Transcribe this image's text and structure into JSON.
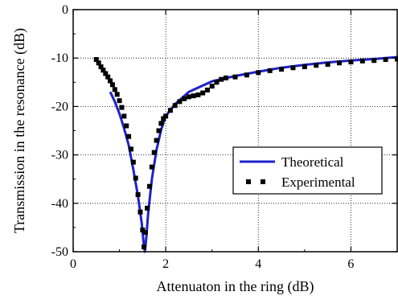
{
  "chart_data": {
    "type": "line",
    "title": "",
    "xlabel": "Attenuaton in the ring (dB)",
    "ylabel": "Transmission in the resonance (dB)",
    "xlim": [
      0,
      7
    ],
    "ylim": [
      -50,
      0
    ],
    "xticks": [
      0,
      2,
      4,
      6
    ],
    "yticks": [
      0,
      -10,
      -20,
      -30,
      -40,
      -50
    ],
    "xtick_labels": [
      "0",
      "2",
      "4",
      "6"
    ],
    "ytick_labels": [
      "0",
      "-10",
      "-20",
      "-30",
      "-40",
      "-50"
    ],
    "grid": true,
    "legend_position": "lower-right",
    "series": [
      {
        "name": "Theoretical",
        "style": "line",
        "color": "#1f22c8",
        "points": [
          [
            0.8,
            -17
          ],
          [
            0.9,
            -19
          ],
          [
            1.0,
            -21.5
          ],
          [
            1.1,
            -24.5
          ],
          [
            1.2,
            -28
          ],
          [
            1.3,
            -33
          ],
          [
            1.4,
            -38.5
          ],
          [
            1.48,
            -44
          ],
          [
            1.52,
            -48
          ],
          [
            1.55,
            -50
          ],
          [
            1.58,
            -47
          ],
          [
            1.62,
            -42
          ],
          [
            1.7,
            -35
          ],
          [
            1.8,
            -29
          ],
          [
            1.9,
            -24.8
          ],
          [
            2.0,
            -22
          ],
          [
            2.2,
            -19.5
          ],
          [
            2.5,
            -17
          ],
          [
            3.0,
            -14.8
          ],
          [
            3.5,
            -13.7
          ],
          [
            4.0,
            -12.8
          ],
          [
            4.5,
            -12
          ],
          [
            5.0,
            -11.4
          ],
          [
            5.5,
            -10.9
          ],
          [
            6.0,
            -10.5
          ],
          [
            6.5,
            -10.2
          ],
          [
            7.0,
            -9.8
          ]
        ]
      },
      {
        "name": "Experimental",
        "style": "marker",
        "color": "#000000",
        "points": [
          [
            0.5,
            -10.3
          ],
          [
            0.55,
            -11
          ],
          [
            0.6,
            -11.8
          ],
          [
            0.65,
            -12.5
          ],
          [
            0.7,
            -13.2
          ],
          [
            0.75,
            -13.9
          ],
          [
            0.8,
            -14.7
          ],
          [
            0.85,
            -15.5
          ],
          [
            0.9,
            -16.5
          ],
          [
            0.95,
            -17.5
          ],
          [
            1.0,
            -18.8
          ],
          [
            1.05,
            -20.2
          ],
          [
            1.1,
            -22
          ],
          [
            1.15,
            -24
          ],
          [
            1.2,
            -26.2
          ],
          [
            1.25,
            -28.8
          ],
          [
            1.3,
            -31.5
          ],
          [
            1.35,
            -34.8
          ],
          [
            1.4,
            -38.2
          ],
          [
            1.45,
            -41.8
          ],
          [
            1.5,
            -45.5
          ],
          [
            1.53,
            -49
          ],
          [
            1.56,
            -46
          ],
          [
            1.6,
            -41
          ],
          [
            1.65,
            -36.5
          ],
          [
            1.7,
            -32.5
          ],
          [
            1.75,
            -29.5
          ],
          [
            1.8,
            -27
          ],
          [
            1.85,
            -25
          ],
          [
            1.9,
            -23.5
          ],
          [
            1.95,
            -22.5
          ],
          [
            2.0,
            -22
          ],
          [
            2.1,
            -20.8
          ],
          [
            2.2,
            -19.8
          ],
          [
            2.3,
            -19
          ],
          [
            2.4,
            -18.4
          ],
          [
            2.5,
            -18
          ],
          [
            2.6,
            -17.8
          ],
          [
            2.7,
            -17.6
          ],
          [
            2.8,
            -17.2
          ],
          [
            2.9,
            -16.6
          ],
          [
            3.0,
            -15.8
          ],
          [
            3.1,
            -15
          ],
          [
            3.2,
            -14.4
          ],
          [
            3.3,
            -14.1
          ],
          [
            3.5,
            -13.9
          ],
          [
            3.75,
            -13.5
          ],
          [
            4.0,
            -13
          ],
          [
            4.25,
            -12.6
          ],
          [
            4.5,
            -12.3
          ],
          [
            4.75,
            -12
          ],
          [
            5.0,
            -11.8
          ],
          [
            5.25,
            -11.5
          ],
          [
            5.5,
            -11.3
          ],
          [
            5.75,
            -11
          ],
          [
            6.0,
            -10.8
          ],
          [
            6.25,
            -10.6
          ],
          [
            6.5,
            -10.5
          ],
          [
            6.75,
            -10.3
          ],
          [
            7.0,
            -10.2
          ]
        ]
      }
    ],
    "legend": [
      {
        "label": "Theoretical",
        "series": 0
      },
      {
        "label": "Experimental",
        "series": 1
      }
    ]
  }
}
